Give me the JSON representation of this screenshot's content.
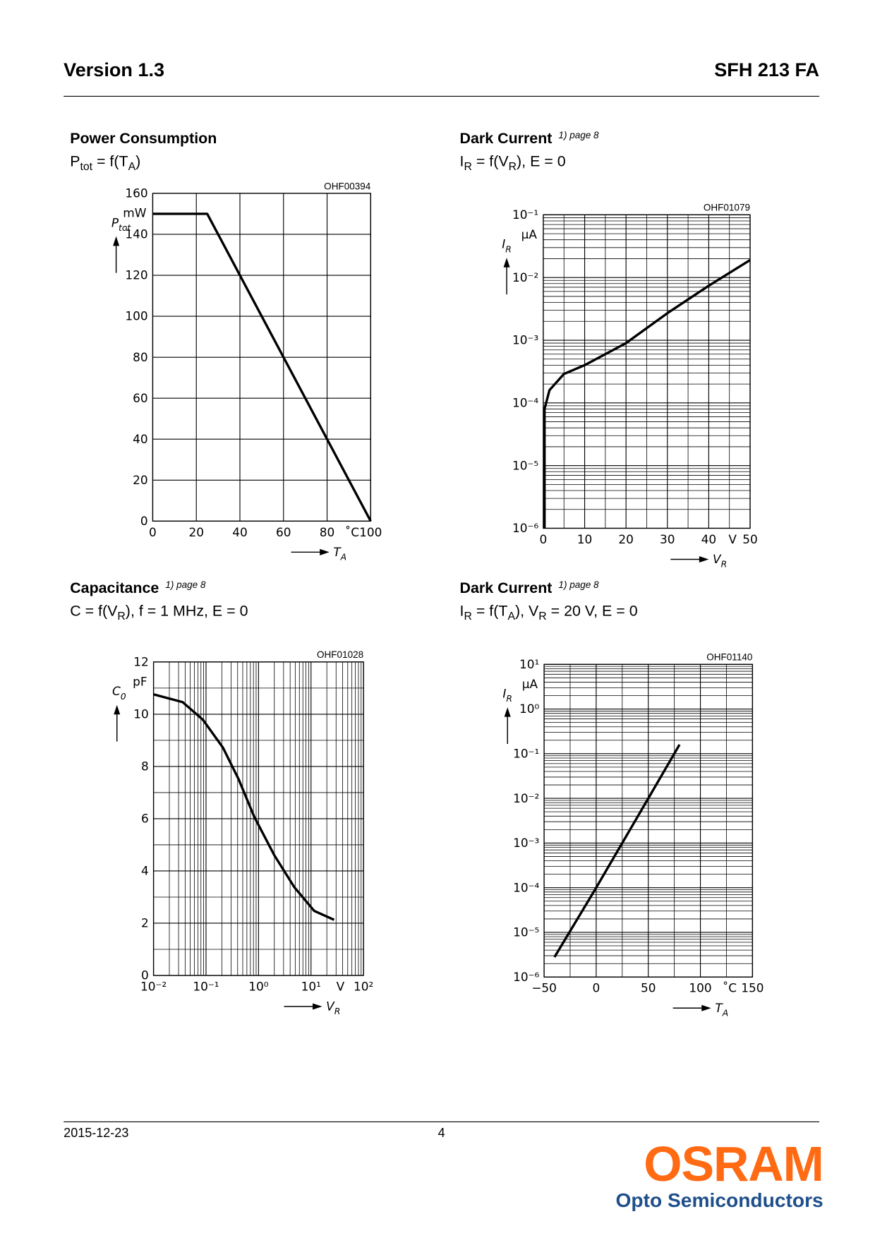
{
  "header": {
    "version": "Version 1.3",
    "product": "SFH 213 FA"
  },
  "footer": {
    "date": "2015-12-23",
    "page": "4",
    "brand": "OSRAM",
    "division": "Opto Semiconductors"
  },
  "chart_data": [
    {
      "type": "line",
      "title": "Power Consumption",
      "subtitle": [
        "P",
        "tot",
        " = f(T",
        "A",
        ")"
      ],
      "code": "OHF00394",
      "ylabel": [
        "P",
        "tot"
      ],
      "yunit": "mW",
      "xlabel": [
        "T",
        "A"
      ],
      "xunit": "˚C",
      "xscale": "linear",
      "yscale": "linear",
      "xlim": [
        0,
        100
      ],
      "ylim": [
        0,
        160
      ],
      "xticks": [
        0,
        20,
        40,
        60,
        80,
        100
      ],
      "yticks": [
        0,
        20,
        40,
        60,
        80,
        100,
        120,
        140,
        160
      ],
      "grid": true,
      "minor_grid": false,
      "series": [
        {
          "color": "#000000",
          "x": [
            0,
            25,
            100
          ],
          "values": [
            150,
            150,
            0
          ]
        }
      ]
    },
    {
      "type": "line",
      "title": "Dark Current",
      "note": "1) page 8",
      "subtitle": [
        "I",
        "R",
        " = f(V",
        "R",
        "), E = 0"
      ],
      "code": "OHF01079",
      "ylabel": [
        "I",
        "R"
      ],
      "yunit": "µA",
      "xlabel": [
        "V",
        "R"
      ],
      "xunit": "V",
      "xscale": "linear",
      "yscale": "log",
      "xlim": [
        0,
        50
      ],
      "ylim": [
        1e-06,
        0.1
      ],
      "xticks": [
        0,
        10,
        20,
        30,
        40,
        50
      ],
      "yticks": [
        {
          "value": 1e-06,
          "label": "10⁻⁶"
        },
        {
          "value": 1e-05,
          "label": "10⁻⁵"
        },
        {
          "value": 0.0001,
          "label": "10⁻⁴"
        },
        {
          "value": 0.001,
          "label": "10⁻³"
        },
        {
          "value": 0.01,
          "label": "10⁻²"
        },
        {
          "value": 0.1,
          "label": "10⁻¹"
        }
      ],
      "grid": true,
      "minor_grid": true,
      "series": [
        {
          "color": "#000000",
          "x": [
            0.3,
            0.3,
            1.5,
            5,
            10,
            20,
            30,
            40,
            50
          ],
          "values": [
            1e-06,
            8e-05,
            0.00016,
            0.00029,
            0.0004,
            0.0009,
            0.0027,
            0.0074,
            0.019
          ]
        }
      ]
    },
    {
      "type": "line",
      "title": "Capacitance",
      "note": "1) page 8",
      "subtitle": [
        "C = f(V",
        "R",
        "), f = 1 MHz, E = 0"
      ],
      "code": "OHF01028",
      "ylabel": [
        "C",
        "0"
      ],
      "yunit": "pF",
      "xlabel": [
        "V",
        "R"
      ],
      "xunit": "V",
      "xscale": "log",
      "yscale": "linear",
      "xlim": [
        0.01,
        100
      ],
      "ylim": [
        0,
        12
      ],
      "xticks": [
        {
          "value": 0.01,
          "label": "10⁻²"
        },
        {
          "value": 0.1,
          "label": "10⁻¹"
        },
        {
          "value": 1,
          "label": "10⁰"
        },
        {
          "value": 10,
          "label": "10¹"
        },
        {
          "value": 100,
          "label": "10²"
        }
      ],
      "yticks": [
        0,
        2,
        4,
        6,
        8,
        10,
        12
      ],
      "grid": true,
      "minor_grid": true,
      "series": [
        {
          "color": "#000000",
          "x": [
            0.01,
            0.036,
            0.087,
            0.21,
            0.42,
            0.83,
            2.0,
            4.8,
            11.5,
            27.5
          ],
          "values": [
            10.76,
            10.46,
            9.79,
            8.72,
            7.5,
            6.07,
            4.6,
            3.38,
            2.47,
            2.13
          ]
        }
      ]
    },
    {
      "type": "line",
      "title": "Dark Current",
      "note": "1) page 8",
      "subtitle": [
        "I",
        "R",
        " = f(T",
        "A",
        "),  V",
        "R",
        " = 20 V, E = 0"
      ],
      "code": "OHF01140",
      "ylabel": [
        "I",
        "R"
      ],
      "yunit": "µA",
      "xlabel": [
        "T",
        "A"
      ],
      "xunit": "˚C",
      "xscale": "linear",
      "yscale": "log",
      "xlim": [
        -50,
        150
      ],
      "ylim": [
        1e-06,
        10
      ],
      "xticks": [
        {
          "value": -50,
          "label": "−50"
        },
        0,
        50,
        100,
        150
      ],
      "yticks": [
        {
          "value": 1e-06,
          "label": "10⁻⁶"
        },
        {
          "value": 1e-05,
          "label": "10⁻⁵"
        },
        {
          "value": 0.0001,
          "label": "10⁻⁴"
        },
        {
          "value": 0.001,
          "label": "10⁻³"
        },
        {
          "value": 0.01,
          "label": "10⁻²"
        },
        {
          "value": 0.1,
          "label": "10⁻¹"
        },
        {
          "value": 1,
          "label": "10⁰"
        },
        {
          "value": 10,
          "label": "10¹"
        }
      ],
      "grid": true,
      "minor_grid": true,
      "series": [
        {
          "color": "#000000",
          "x": [
            -40,
            0,
            25,
            50,
            80
          ],
          "values": [
            2.8e-06,
            0.0001,
            0.001,
            0.01,
            0.16
          ]
        }
      ]
    }
  ]
}
